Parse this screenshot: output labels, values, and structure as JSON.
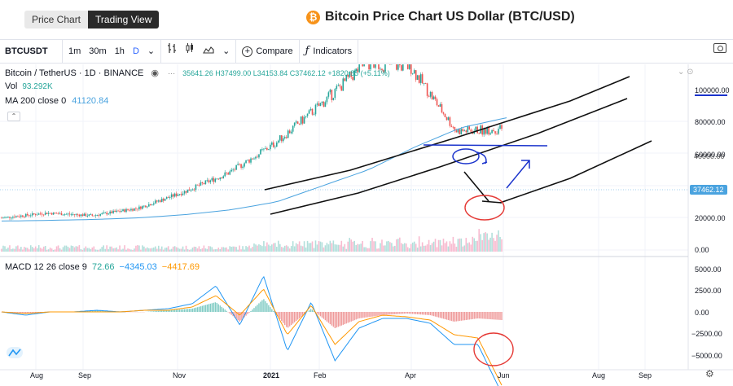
{
  "header": {
    "tab_price_chart": "Price Chart",
    "tab_trading_view": "Trading View",
    "page_title": "Bitcoin Price Chart US Dollar (BTC/USD)",
    "coin_glyph": "₿"
  },
  "toolbar": {
    "symbol": "BTCUSDT",
    "intervals": [
      "1m",
      "30m",
      "1h",
      "D"
    ],
    "compare_label": "Compare",
    "indicators_label": "Indicators"
  },
  "legend": {
    "pair": "Bitcoin / TetherUS · 1D · BINANCE",
    "ohlc": "35641.26 H37499.00 L34153.84 C37462.12 +1820.85 (+5.11%)",
    "vol_label": "Vol",
    "vol_value": "93.292K",
    "ma_label": "MA 200 close 0",
    "ma_value": "41120.84",
    "macd_label": "MACD 12 26 close 9",
    "macd_v1": "72.66",
    "macd_v2": "−4345.03",
    "macd_v3": "−4417.69"
  },
  "price_axis": [
    "100000.00",
    "80000.00",
    "60000.00",
    "37462.12",
    "20000.00",
    "0.00"
  ],
  "macd_axis": [
    "5000.00",
    "2500.00",
    "0.00",
    "−2500.00",
    "−5000.00"
  ],
  "time_axis": [
    "Aug",
    "Sep",
    "Nov",
    "2021",
    "Feb",
    "Apr",
    "Jun",
    "Aug",
    "Sep"
  ],
  "colors": {
    "up": "#26a69a",
    "down": "#ef5350",
    "ma": "#4aa3df",
    "macd": "#2196f3",
    "signal": "#ff9800"
  },
  "chart_data": {
    "type": "line",
    "x": [
      "2020-07",
      "2020-08",
      "2020-09",
      "2020-10",
      "2020-11",
      "2020-12",
      "2021-01",
      "2021-02",
      "2021-03",
      "2021-04",
      "2021-05",
      "2021-06"
    ],
    "series": [
      {
        "name": "Bitcoin / TetherUS",
        "values": [
          10000,
          11500,
          10700,
          13000,
          18000,
          24000,
          33000,
          45000,
          58000,
          57000,
          37000,
          37462.12
        ]
      },
      {
        "name": "MA 200 close 0",
        "values": [
          9000,
          9200,
          9500,
          10000,
          11000,
          12500,
          15000,
          20000,
          25000,
          32000,
          38000,
          41120.84
        ]
      }
    ],
    "ylim": [
      0,
      100000
    ]
  }
}
